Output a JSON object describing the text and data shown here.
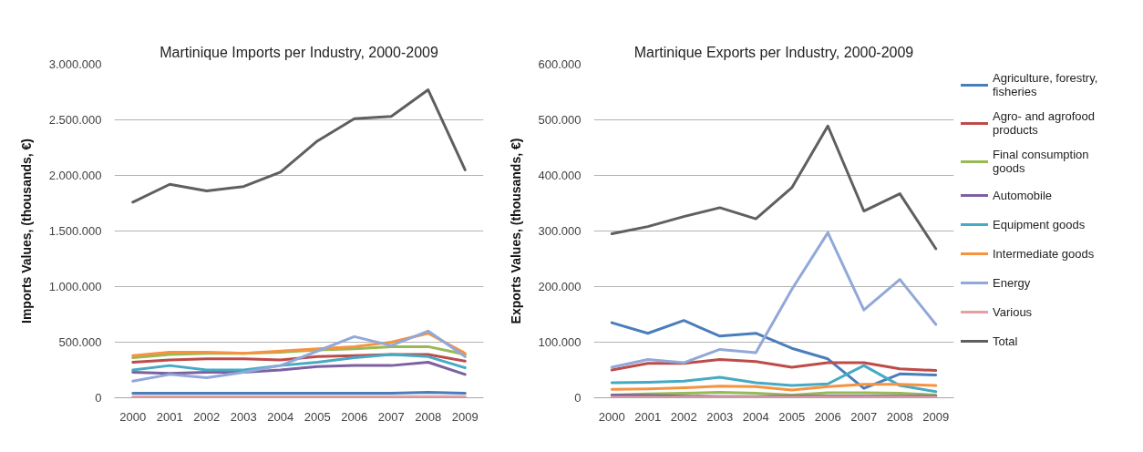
{
  "chart_data": [
    {
      "type": "line",
      "title": "Martinique Imports per Industry, 2000-2009",
      "ylabel": "Imports Values, (thousands, €)",
      "categories": [
        "2000",
        "2001",
        "2002",
        "2003",
        "2004",
        "2005",
        "2006",
        "2007",
        "2008",
        "2009"
      ],
      "ylim": [
        0,
        3000000
      ],
      "yticks": [
        0,
        {
          "value": 500000,
          "label": "500.000"
        },
        {
          "value": 1000000,
          "label": "1.000.000"
        },
        {
          "value": 1500000,
          "label": "1.500.000"
        },
        {
          "value": 2000000,
          "label": "2.000.000"
        },
        {
          "value": 2500000,
          "label": "2.500.000"
        },
        {
          "value": 3000000,
          "label": "3.000.000"
        }
      ],
      "grid": "y",
      "legend": false,
      "series": [
        {
          "color": "#4a7ebb",
          "values": [
            40000,
            40000,
            40000,
            40000,
            40000,
            40000,
            40000,
            40000,
            50000,
            40000
          ]
        },
        {
          "color": "#be4b48",
          "values": [
            320000,
            340000,
            350000,
            350000,
            340000,
            370000,
            380000,
            390000,
            390000,
            330000
          ]
        },
        {
          "color": "#98b954",
          "values": [
            360000,
            390000,
            400000,
            400000,
            410000,
            430000,
            440000,
            460000,
            460000,
            390000
          ]
        },
        {
          "color": "#7d60a0",
          "values": [
            230000,
            220000,
            230000,
            230000,
            250000,
            280000,
            290000,
            290000,
            320000,
            210000
          ]
        },
        {
          "color": "#46aac5",
          "values": [
            250000,
            290000,
            250000,
            250000,
            290000,
            320000,
            360000,
            390000,
            370000,
            270000
          ]
        },
        {
          "color": "#f69240",
          "values": [
            380000,
            410000,
            410000,
            400000,
            420000,
            440000,
            460000,
            500000,
            580000,
            400000
          ]
        },
        {
          "color": "#91a8d8",
          "values": [
            150000,
            210000,
            180000,
            230000,
            290000,
            420000,
            550000,
            470000,
            600000,
            370000
          ]
        },
        {
          "color": "#e6a0a4",
          "values": [
            10000,
            10000,
            10000,
            10000,
            10000,
            10000,
            10000,
            10000,
            10000,
            10000
          ]
        },
        {
          "color": "#5f5f5f",
          "values": [
            1760000,
            1920000,
            1860000,
            1900000,
            2030000,
            2310000,
            2510000,
            2530000,
            2770000,
            2050000
          ]
        }
      ]
    },
    {
      "type": "line",
      "title": "Martinique Exports per Industry, 2000-2009",
      "ylabel": "Exports Values, (thousands, €)",
      "categories": [
        "2000",
        "2001",
        "2002",
        "2003",
        "2004",
        "2005",
        "2006",
        "2007",
        "2008",
        "2009"
      ],
      "ylim": [
        0,
        600000
      ],
      "yticks": [
        0,
        {
          "value": 100000,
          "label": "100.000"
        },
        {
          "value": 200000,
          "label": "200.000"
        },
        {
          "value": 300000,
          "label": "300.000"
        },
        {
          "value": 400000,
          "label": "400.000"
        },
        {
          "value": 500000,
          "label": "500.000"
        },
        {
          "value": 600000,
          "label": "600.000"
        }
      ],
      "grid": "y",
      "legend": "right",
      "series": [
        {
          "name": "Agriculture, forestry, fisheries",
          "color": "#4a7ebb",
          "values": [
            135000,
            116000,
            139000,
            111000,
            116000,
            89000,
            70000,
            17000,
            43000,
            41000
          ]
        },
        {
          "name": "Agro- and agrofood products",
          "color": "#be4b48",
          "values": [
            50000,
            62000,
            62000,
            69000,
            65000,
            55000,
            63000,
            63000,
            52000,
            49000
          ]
        },
        {
          "name": "Final consumption goods",
          "color": "#98b954",
          "values": [
            5000,
            7000,
            8000,
            10000,
            8000,
            5000,
            9000,
            9000,
            8000,
            5000
          ]
        },
        {
          "name": "Automobile",
          "color": "#7d60a0",
          "values": [
            5000,
            4000,
            3000,
            2000,
            2000,
            3000,
            3000,
            3000,
            3000,
            3000
          ]
        },
        {
          "name": "Equipment goods",
          "color": "#46aac5",
          "values": [
            27000,
            28000,
            30000,
            37000,
            27000,
            22000,
            25000,
            58000,
            22000,
            11000
          ]
        },
        {
          "name": "Intermediate goods",
          "color": "#f69240",
          "values": [
            15000,
            16000,
            18000,
            21000,
            20000,
            14000,
            20000,
            24000,
            24000,
            22000
          ]
        },
        {
          "name": "Energy",
          "color": "#91a8d8",
          "values": [
            55000,
            69000,
            63000,
            87000,
            81000,
            195000,
            297000,
            158000,
            213000,
            132000
          ]
        },
        {
          "name": "Various",
          "color": "#e6a0a4",
          "values": [
            1000,
            1000,
            1000,
            1000,
            1000,
            1000,
            1000,
            1000,
            1000,
            1000
          ]
        },
        {
          "name": "Total",
          "color": "#5f5f5f",
          "values": [
            295000,
            308000,
            326000,
            342000,
            322000,
            378000,
            489000,
            336000,
            367000,
            268000
          ]
        }
      ]
    }
  ]
}
